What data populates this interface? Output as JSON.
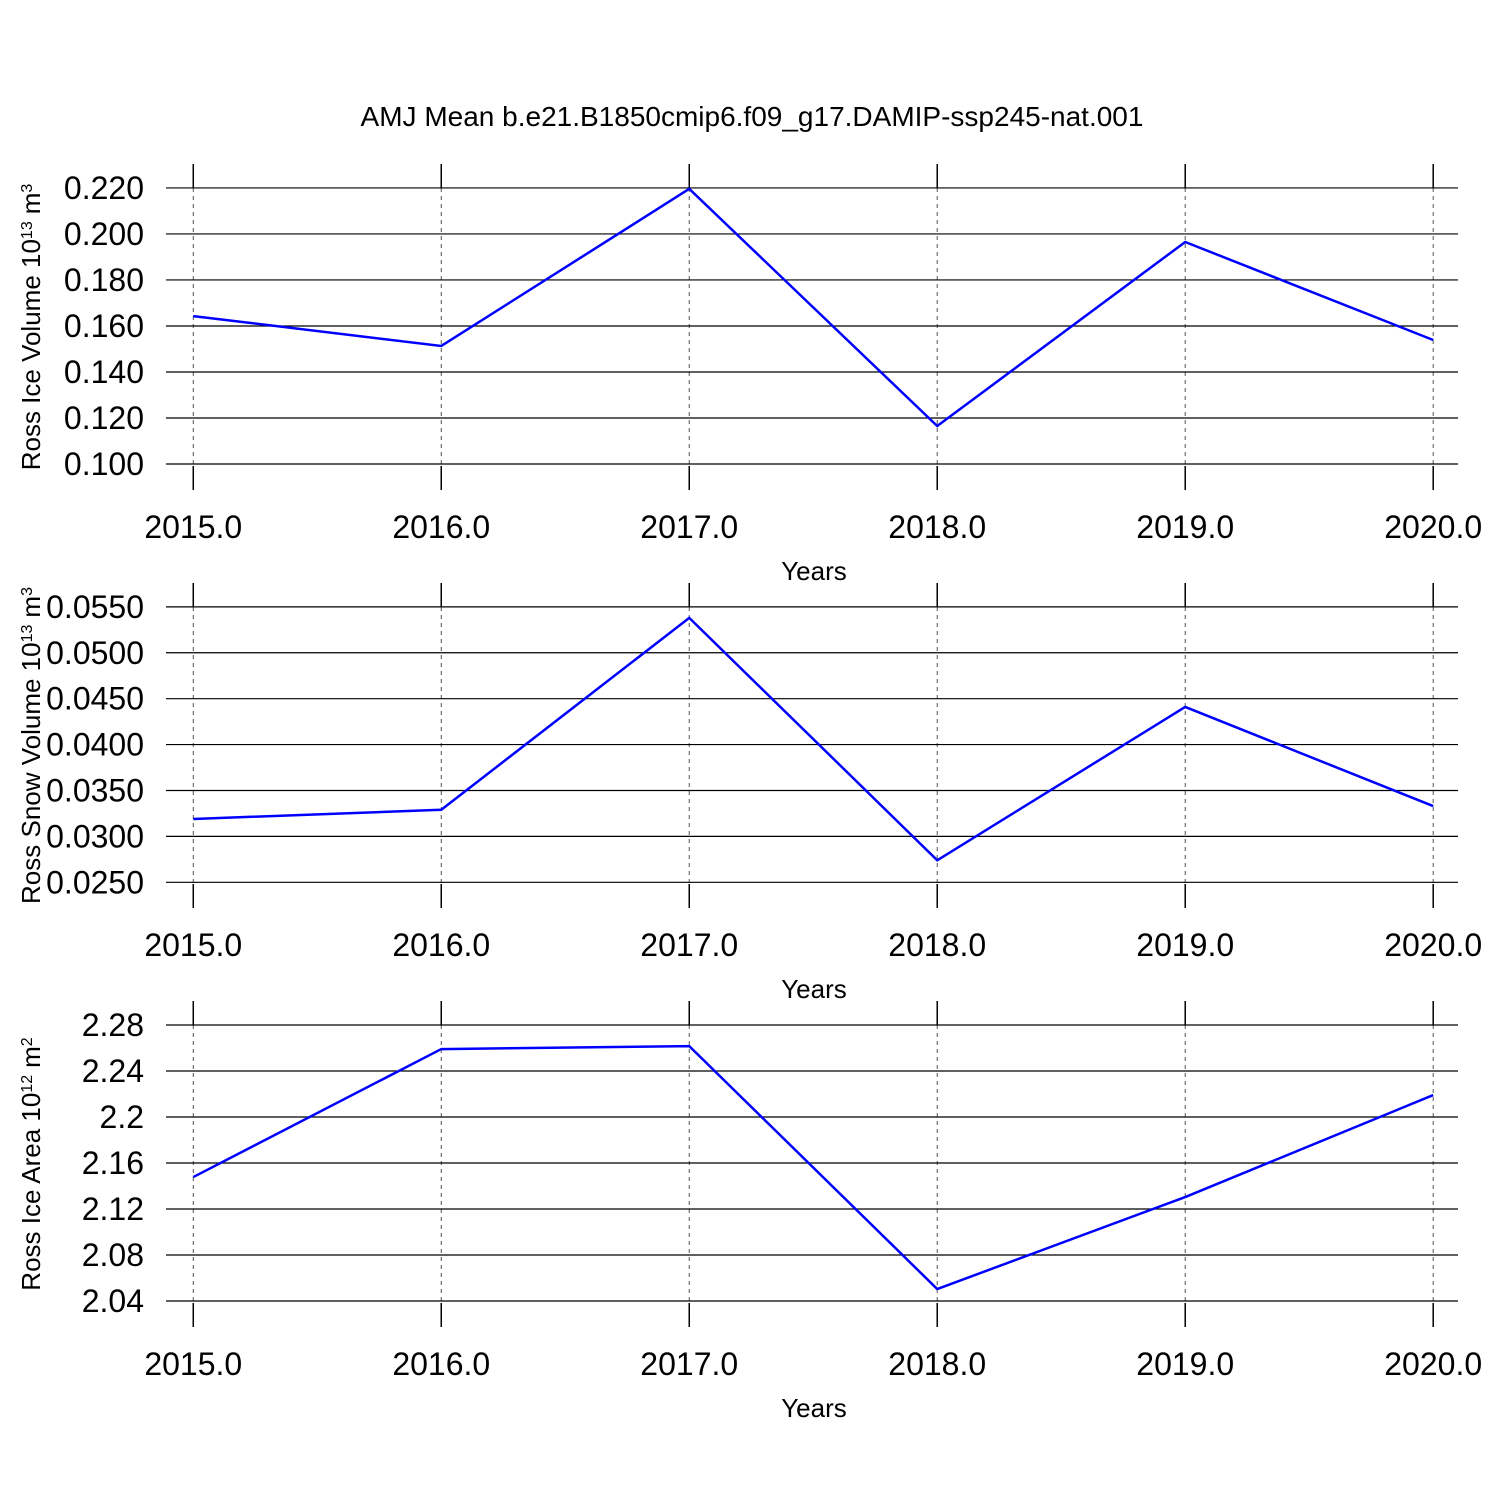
{
  "chart_data": [
    {
      "type": "line",
      "title": "AMJ Mean b.e21.B1850cmip6.f09_g17.DAMIP-ssp245-nat.001",
      "ylabel": [
        "Ross Ice Volume 10",
        "13",
        "m",
        "3"
      ],
      "xlabel": "Years",
      "x": [
        2015,
        2016,
        2017,
        2018,
        2019,
        2020
      ],
      "values": [
        0.1643,
        0.1513,
        0.2196,
        0.1165,
        0.1965,
        0.1539
      ],
      "color": "#0000ff",
      "xlim": [
        2014.89,
        2020.1
      ],
      "xticks": [
        {
          "value": 2015,
          "label": "2015.0"
        },
        {
          "value": 2016,
          "label": "2016.0"
        },
        {
          "value": 2017,
          "label": "2017.0"
        },
        {
          "value": 2018,
          "label": "2018.0"
        },
        {
          "value": 2019,
          "label": "2019.0"
        },
        {
          "value": 2020,
          "label": "2020.0"
        }
      ],
      "ylim": [
        0.0887,
        0.2304
      ],
      "yticks": [
        {
          "value": 0.1,
          "label": "0.100"
        },
        {
          "value": 0.12,
          "label": "0.120"
        },
        {
          "value": 0.14,
          "label": "0.140"
        },
        {
          "value": 0.16,
          "label": "0.160"
        },
        {
          "value": 0.18,
          "label": "0.180"
        },
        {
          "value": 0.2,
          "label": "0.200"
        },
        {
          "value": 0.22,
          "label": "0.220"
        }
      ],
      "grid": true
    },
    {
      "type": "line",
      "ylabel": [
        "Ross Snow Volume 10",
        "13",
        "m",
        "3"
      ],
      "xlabel": "Years",
      "x": [
        2015,
        2016,
        2017,
        2018,
        2019,
        2020
      ],
      "values": [
        0.0319,
        0.0329,
        0.0538,
        0.0274,
        0.0441,
        0.0333
      ],
      "color": "#0000ff",
      "xlim": [
        2014.89,
        2020.1
      ],
      "xticks": [
        {
          "value": 2015,
          "label": "2015.0"
        },
        {
          "value": 2016,
          "label": "2016.0"
        },
        {
          "value": 2017,
          "label": "2017.0"
        },
        {
          "value": 2018,
          "label": "2018.0"
        },
        {
          "value": 2019,
          "label": "2019.0"
        },
        {
          "value": 2020,
          "label": "2020.0"
        }
      ],
      "ylim": [
        0.0222,
        0.0576
      ],
      "yticks": [
        {
          "value": 0.025,
          "label": "0.0250"
        },
        {
          "value": 0.03,
          "label": "0.0300"
        },
        {
          "value": 0.035,
          "label": "0.0350"
        },
        {
          "value": 0.04,
          "label": "0.0400"
        },
        {
          "value": 0.045,
          "label": "0.0450"
        },
        {
          "value": 0.05,
          "label": "0.0500"
        },
        {
          "value": 0.055,
          "label": "0.0550"
        }
      ],
      "grid": true
    },
    {
      "type": "line",
      "ylabel": [
        "Ross Ice Area 10",
        "12",
        "m",
        "2"
      ],
      "xlabel": "Years",
      "x": [
        2015,
        2016,
        2017,
        2018,
        2019,
        2020
      ],
      "values": [
        2.1478,
        2.2591,
        2.2617,
        2.0504,
        2.1304,
        2.2191
      ],
      "color": "#0000ff",
      "xlim": [
        2014.89,
        2020.1
      ],
      "xticks": [
        {
          "value": 2015,
          "label": "2015.0"
        },
        {
          "value": 2016,
          "label": "2016.0"
        },
        {
          "value": 2017,
          "label": "2017.0"
        },
        {
          "value": 2018,
          "label": "2018.0"
        },
        {
          "value": 2019,
          "label": "2019.0"
        },
        {
          "value": 2020,
          "label": "2020.0"
        }
      ],
      "ylim": [
        2.0174,
        2.3009
      ],
      "yticks": [
        2.04,
        2.08,
        2.12,
        2.16,
        2.2,
        2.24,
        2.28
      ],
      "grid": true
    }
  ]
}
